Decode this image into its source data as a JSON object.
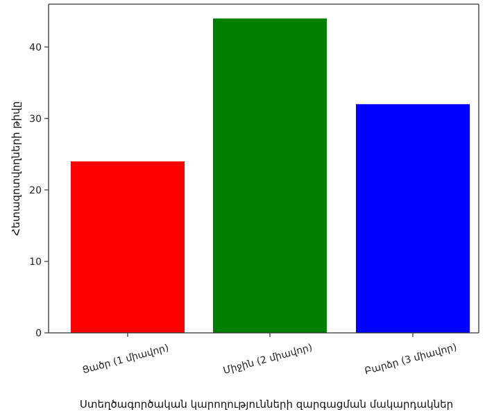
{
  "chart_data": {
    "type": "bar",
    "title": "",
    "xlabel": "Ստեղծագործական կարողությունների զարգացման մակարդակներ",
    "ylabel": "Հետազոտվողների թիվը",
    "categories": [
      "Ցածր (1 միավոր)",
      "Միջին (2 միավոր)",
      "Բարձր (3 միավոր)"
    ],
    "values": [
      24,
      44,
      32
    ],
    "colors": [
      "#ff0000",
      "#008000",
      "#0000ff"
    ],
    "ylim": [
      0,
      46
    ],
    "yticks": [
      "0",
      "10",
      "20",
      "30",
      "40"
    ],
    "grid": false,
    "legend": "none"
  }
}
